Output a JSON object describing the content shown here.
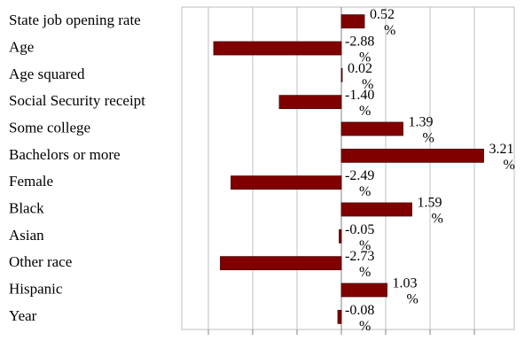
{
  "chart_data": {
    "type": "bar",
    "orientation": "horizontal",
    "categories": [
      "State job opening rate",
      "Age",
      "Age squared",
      "Social Security receipt",
      "Some college",
      "Bachelors or more",
      "Female",
      "Black",
      "Asian",
      "Other race",
      "Hispanic",
      "Year"
    ],
    "values": [
      0.52,
      -2.88,
      0.02,
      -1.4,
      1.39,
      3.21,
      -2.49,
      1.59,
      -0.05,
      -2.73,
      1.03,
      -0.08
    ],
    "value_labels": [
      "0.52 %",
      "-2.88 %",
      "0.02 %",
      "-1.40 %",
      "1.39 %",
      "3.21 %",
      "-2.49 %",
      "1.59 %",
      "-0.05 %",
      "-2.73 %",
      "1.03 %",
      "-0.08 %"
    ],
    "xlim": [
      -3.6,
      3.9
    ],
    "grid": true,
    "legend": "none",
    "bar_color": "#800000",
    "bar_edge_color": "#4a0000",
    "grid_color": "#bfbfbf"
  }
}
